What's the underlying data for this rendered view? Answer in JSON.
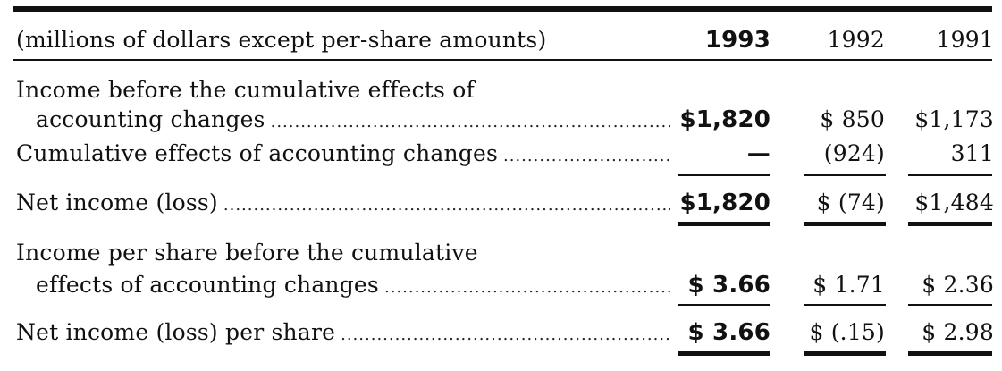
{
  "header": {
    "caption": "(millions of dollars except per-share amounts)",
    "years": [
      "1993",
      "1992",
      "1991"
    ]
  },
  "rows": {
    "income_before": {
      "label_line1": "Income before the cumulative effects of",
      "label_line2": "accounting changes",
      "v1993": "$1,820",
      "v1992": "$ 850",
      "v1991": "$1,173"
    },
    "cumulative_effects": {
      "label": "Cumulative effects of accounting changes",
      "v1993": "—",
      "v1992": "(924)",
      "v1991": "311"
    },
    "net_income": {
      "label": "Net income (loss)",
      "v1993": "$1,820",
      "v1992": "$  (74)",
      "v1991": "$1,484"
    },
    "eps_before": {
      "label_line1": "Income per share before the cumulative",
      "label_line2": "effects of accounting changes",
      "v1993": "$  3.66",
      "v1992": "$ 1.71",
      "v1991": "$  2.36"
    },
    "net_eps": {
      "label": "Net income (loss) per share",
      "v1993": "$  3.66",
      "v1992": "$ (.15)",
      "v1991": "$  2.98"
    }
  },
  "leader_dots": "..........................................................................................................................................."
}
